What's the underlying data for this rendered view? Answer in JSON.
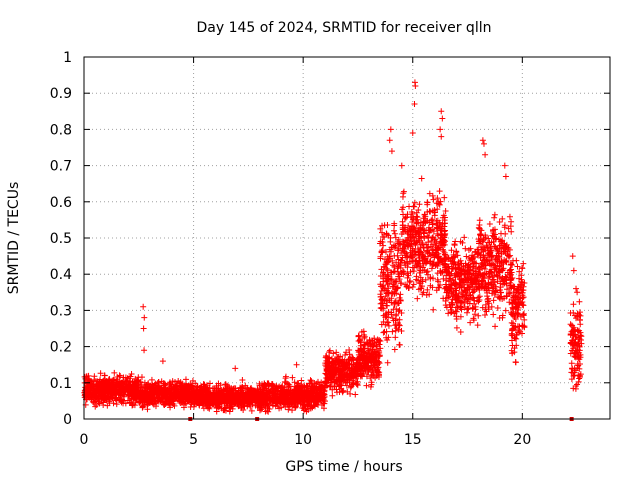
{
  "chart_data": {
    "type": "scatter",
    "title": "Day 145 of 2024, SRMTID for receiver qlln",
    "xlabel": "GPS time / hours",
    "ylabel": "SRMTID / TECUs",
    "xlim": [
      0,
      24
    ],
    "ylim": [
      0,
      1
    ],
    "x_ticks": [
      0,
      5,
      10,
      15,
      20
    ],
    "x_tick_labels": [
      "0",
      "5",
      "10",
      "15",
      "20"
    ],
    "y_ticks": [
      0,
      0.1,
      0.2,
      0.3,
      0.4,
      0.5,
      0.6,
      0.7,
      0.8,
      0.9,
      1
    ],
    "y_tick_labels": [
      "0",
      "0.1",
      "0.2",
      "0.3",
      "0.4",
      "0.5",
      "0.6",
      "0.7",
      "0.8",
      "0.9",
      "1"
    ],
    "grid": true,
    "marker": "+",
    "color": "#ff0000",
    "outlier_color": "#cc0000",
    "series": [
      {
        "name": "SRMTID",
        "segments": [
          {
            "x_start": 0.0,
            "x_end": 2.5,
            "y_mean": 0.08,
            "y_spread": 0.035
          },
          {
            "x_start": 2.5,
            "x_end": 5.0,
            "y_mean": 0.07,
            "y_spread": 0.03
          },
          {
            "x_start": 5.0,
            "x_end": 8.0,
            "y_mean": 0.06,
            "y_spread": 0.03
          },
          {
            "x_start": 8.0,
            "x_end": 11.0,
            "y_mean": 0.065,
            "y_spread": 0.035
          },
          {
            "x_start": 11.0,
            "x_end": 12.5,
            "y_mean": 0.13,
            "y_spread": 0.05
          },
          {
            "x_start": 12.5,
            "x_end": 13.5,
            "y_mean": 0.17,
            "y_spread": 0.06
          },
          {
            "x_start": 13.5,
            "x_end": 14.5,
            "y_mean": 0.38,
            "y_spread": 0.15
          },
          {
            "x_start": 14.5,
            "x_end": 16.5,
            "y_mean": 0.48,
            "y_spread": 0.13
          },
          {
            "x_start": 16.5,
            "x_end": 18.0,
            "y_mean": 0.38,
            "y_spread": 0.1
          },
          {
            "x_start": 18.0,
            "x_end": 19.5,
            "y_mean": 0.42,
            "y_spread": 0.12
          },
          {
            "x_start": 19.5,
            "x_end": 20.1,
            "y_mean": 0.3,
            "y_spread": 0.12
          },
          {
            "x_start": 22.2,
            "x_end": 22.7,
            "y_mean": 0.2,
            "y_spread": 0.1
          }
        ],
        "peaks": [
          {
            "x": 2.7,
            "y": 0.31
          },
          {
            "x": 2.75,
            "y": 0.28
          },
          {
            "x": 2.72,
            "y": 0.25
          },
          {
            "x": 2.74,
            "y": 0.19
          },
          {
            "x": 3.6,
            "y": 0.16
          },
          {
            "x": 6.9,
            "y": 0.14
          },
          {
            "x": 9.7,
            "y": 0.15
          },
          {
            "x": 14.0,
            "y": 0.8
          },
          {
            "x": 13.95,
            "y": 0.77
          },
          {
            "x": 14.05,
            "y": 0.74
          },
          {
            "x": 14.5,
            "y": 0.7
          },
          {
            "x": 15.1,
            "y": 0.93
          },
          {
            "x": 15.12,
            "y": 0.92
          },
          {
            "x": 15.08,
            "y": 0.87
          },
          {
            "x": 15.0,
            "y": 0.79
          },
          {
            "x": 16.3,
            "y": 0.85
          },
          {
            "x": 16.35,
            "y": 0.83
          },
          {
            "x": 16.25,
            "y": 0.8
          },
          {
            "x": 16.3,
            "y": 0.78
          },
          {
            "x": 18.2,
            "y": 0.77
          },
          {
            "x": 18.25,
            "y": 0.76
          },
          {
            "x": 18.3,
            "y": 0.73
          },
          {
            "x": 19.2,
            "y": 0.7
          },
          {
            "x": 19.25,
            "y": 0.67
          },
          {
            "x": 22.3,
            "y": 0.45
          },
          {
            "x": 22.35,
            "y": 0.41
          },
          {
            "x": 22.45,
            "y": 0.36
          },
          {
            "x": 22.5,
            "y": 0.35
          }
        ],
        "zero_points": [
          {
            "x": 4.85,
            "y": 0.0
          },
          {
            "x": 7.9,
            "y": 0.0
          },
          {
            "x": 22.25,
            "y": 0.0
          }
        ]
      }
    ]
  }
}
